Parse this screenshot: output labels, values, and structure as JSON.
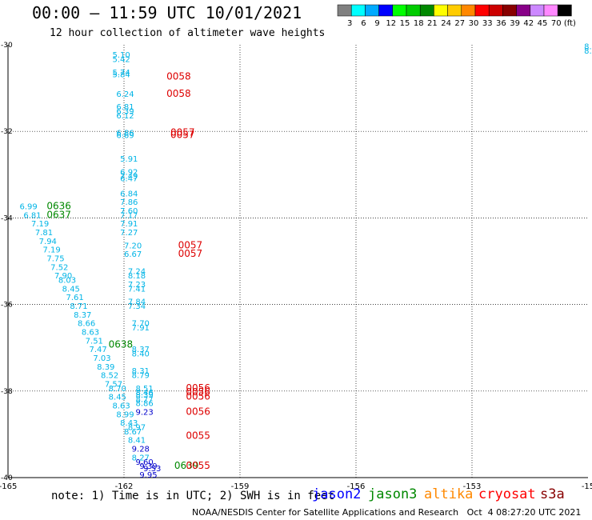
{
  "header": {
    "title": "00:00 – 11:59 UTC 10/01/2021",
    "subtitle": "12 hour collection of altimeter wave heights"
  },
  "colorbar": {
    "labels": [
      "3",
      "6",
      "9",
      "12",
      "15",
      "18",
      "21",
      "24",
      "27",
      "30",
      "33",
      "36",
      "39",
      "42",
      "45",
      "70",
      "(ft)"
    ],
    "colors": [
      "#808080",
      "#00ffff",
      "#00aaff",
      "#0000ff",
      "#00ff00",
      "#00cc00",
      "#008800",
      "#ffff00",
      "#ffcc00",
      "#ff8800",
      "#ff0000",
      "#cc0000",
      "#880000",
      "#880088",
      "#cc88ff",
      "#ff88ff",
      "#000000"
    ]
  },
  "footer": {
    "note": "note: 1) Time is in UTC; 2) SWH is in feet",
    "credit": "NOAA/NESDIS Center for Satellite Applications and Research   Oct  4 08:27:20 UTC 2021"
  },
  "legend": [
    {
      "name": "jason2",
      "color": "#0000ff"
    },
    {
      "name": "jason3",
      "color": "#008800"
    },
    {
      "name": "altika",
      "color": "#ff8800"
    },
    {
      "name": "cryosat",
      "color": "#ff0000"
    },
    {
      "name": "s3a",
      "color": "#880000"
    }
  ],
  "chart_data": {
    "type": "scatter",
    "title": "00:00 – 11:59 UTC 10/01/2021",
    "subtitle": "12 hour collection of altimeter wave heights",
    "x_ticks": [
      "-165",
      "-162",
      "-159",
      "-156",
      "-153",
      "-15"
    ],
    "y_ticks": [
      "-30",
      "-32",
      "-34",
      "-36",
      "-38",
      "-40"
    ],
    "xlim": [
      -165,
      -150
    ],
    "ylim": [
      -40,
      -30
    ],
    "grid": true,
    "series": [
      {
        "name": "cyan",
        "color": "#00b4e6",
        "points": [
          [
            -162.3,
            -30.3,
            "5.10"
          ],
          [
            -162.3,
            -30.4,
            "5.42"
          ],
          [
            -162.3,
            -30.7,
            "5.74"
          ],
          [
            -162.3,
            -30.75,
            "5.84"
          ],
          [
            -162.2,
            -31.2,
            "6.24"
          ],
          [
            -162.2,
            -31.5,
            "6.81"
          ],
          [
            -162.2,
            -31.6,
            "6.39"
          ],
          [
            -162.2,
            -31.7,
            "6.12"
          ],
          [
            -162.2,
            -32.1,
            "6.86"
          ],
          [
            -162.2,
            -32.15,
            "6.69"
          ],
          [
            -162.1,
            -32.7,
            "5.91"
          ],
          [
            -162.1,
            -33.0,
            "6.92"
          ],
          [
            -162.1,
            -33.1,
            "7.49"
          ],
          [
            -162.1,
            -33.15,
            "6.47"
          ],
          [
            -162.1,
            -33.5,
            "6.84"
          ],
          [
            -162.1,
            -33.7,
            "7.86"
          ],
          [
            -162.1,
            -33.9,
            "7.60"
          ],
          [
            -162.1,
            -34.0,
            "7.17"
          ],
          [
            -162.1,
            -34.2,
            "7.91"
          ],
          [
            -162.1,
            -34.4,
            "7.27"
          ],
          [
            -162.0,
            -34.7,
            "7.20"
          ],
          [
            -162.0,
            -34.9,
            "6.67"
          ],
          [
            -161.9,
            -35.3,
            "7.24"
          ],
          [
            -161.9,
            -35.4,
            "8.18"
          ],
          [
            -161.9,
            -35.6,
            "7.23"
          ],
          [
            -161.9,
            -35.7,
            "7.41"
          ],
          [
            -161.9,
            -36.0,
            "7.84"
          ],
          [
            -161.9,
            -36.1,
            "7.34"
          ],
          [
            -161.8,
            -36.5,
            "7.70"
          ],
          [
            -161.8,
            -36.6,
            "7.91"
          ],
          [
            -161.8,
            -37.1,
            "8.37"
          ],
          [
            -161.8,
            -37.2,
            "8.40"
          ],
          [
            -161.8,
            -37.6,
            "8.31"
          ],
          [
            -161.8,
            -37.7,
            "8.79"
          ],
          [
            -161.7,
            -38.0,
            "8.51"
          ],
          [
            -161.7,
            -38.1,
            "8.46"
          ],
          [
            -161.7,
            -38.15,
            "8.39"
          ],
          [
            -161.7,
            -38.25,
            "8.77"
          ],
          [
            -161.7,
            -38.35,
            "8.86"
          ],
          [
            -161.9,
            -38.9,
            "8.97"
          ],
          [
            -164.7,
            -33.8,
            "6.99"
          ],
          [
            -164.6,
            -34.0,
            "6.81"
          ],
          [
            -164.4,
            -34.2,
            "7.19"
          ],
          [
            -164.3,
            -34.4,
            "7.81"
          ],
          [
            -164.2,
            -34.6,
            "7.94"
          ],
          [
            -164.1,
            -34.8,
            "7.19"
          ],
          [
            -164.0,
            -35.0,
            "7.75"
          ],
          [
            -163.9,
            -35.2,
            "7.52"
          ],
          [
            -163.8,
            -35.4,
            "7.90"
          ],
          [
            -163.7,
            -35.5,
            "8.03"
          ],
          [
            -163.6,
            -35.7,
            "8.45"
          ],
          [
            -163.5,
            -35.9,
            "7.61"
          ],
          [
            -163.4,
            -36.1,
            "8.71"
          ],
          [
            -163.3,
            -36.3,
            "8.37"
          ],
          [
            -163.2,
            -36.5,
            "8.66"
          ],
          [
            -163.1,
            -36.7,
            "8.63"
          ],
          [
            -163.0,
            -36.9,
            "7.51"
          ],
          [
            -162.9,
            -37.1,
            "7.47"
          ],
          [
            -162.8,
            -37.3,
            "7.03"
          ],
          [
            -162.7,
            -37.5,
            "8.39"
          ],
          [
            -162.6,
            -37.7,
            "8.52"
          ],
          [
            -162.5,
            -37.9,
            "7.57"
          ],
          [
            -162.4,
            -38.0,
            "8.70"
          ],
          [
            -162.4,
            -38.2,
            "8.45"
          ],
          [
            -162.3,
            -38.4,
            "8.63"
          ],
          [
            -162.2,
            -38.6,
            "8.99"
          ],
          [
            -162.1,
            -38.8,
            "8.43"
          ],
          [
            -162.0,
            -39.0,
            "8.67"
          ],
          [
            -161.9,
            -39.2,
            "8.41"
          ],
          [
            -161.8,
            -39.6,
            "8.27"
          ],
          [
            -150.1,
            -30.1,
            "8."
          ],
          [
            -150.1,
            -30.2,
            "8."
          ]
        ]
      },
      {
        "name": "blue",
        "color": "#0000cc",
        "points": [
          [
            -161.7,
            -38.55,
            "9.23"
          ],
          [
            -161.8,
            -39.4,
            "9.28"
          ],
          [
            -161.7,
            -39.7,
            "9.60"
          ],
          [
            -161.6,
            -39.8,
            "9.39"
          ],
          [
            -161.5,
            -39.85,
            "9.53"
          ],
          [
            -161.6,
            -40.0,
            "9.95"
          ]
        ]
      },
      {
        "name": "green",
        "color": "#008800",
        "points": [
          [
            -164.0,
            -33.8,
            "0636"
          ],
          [
            -164.0,
            -34.0,
            "0637"
          ],
          [
            -162.4,
            -37.0,
            "0638"
          ],
          [
            -160.7,
            -39.8,
            "0639"
          ]
        ]
      },
      {
        "name": "red",
        "color": "#dd0000",
        "points": [
          [
            -160.9,
            -30.8,
            "0058"
          ],
          [
            -160.9,
            -31.2,
            "0058"
          ],
          [
            -160.8,
            -32.1,
            "0057"
          ],
          [
            -160.8,
            -32.15,
            "0057"
          ],
          [
            -160.6,
            -34.7,
            "0057"
          ],
          [
            -160.6,
            -34.9,
            "0057"
          ],
          [
            -160.4,
            -38.0,
            "0056"
          ],
          [
            -160.4,
            -38.1,
            "0056"
          ],
          [
            -160.4,
            -38.2,
            "0056"
          ],
          [
            -160.4,
            -38.55,
            "0056"
          ],
          [
            -160.4,
            -39.1,
            "0055"
          ],
          [
            -160.4,
            -39.8,
            "0055"
          ]
        ]
      }
    ]
  }
}
